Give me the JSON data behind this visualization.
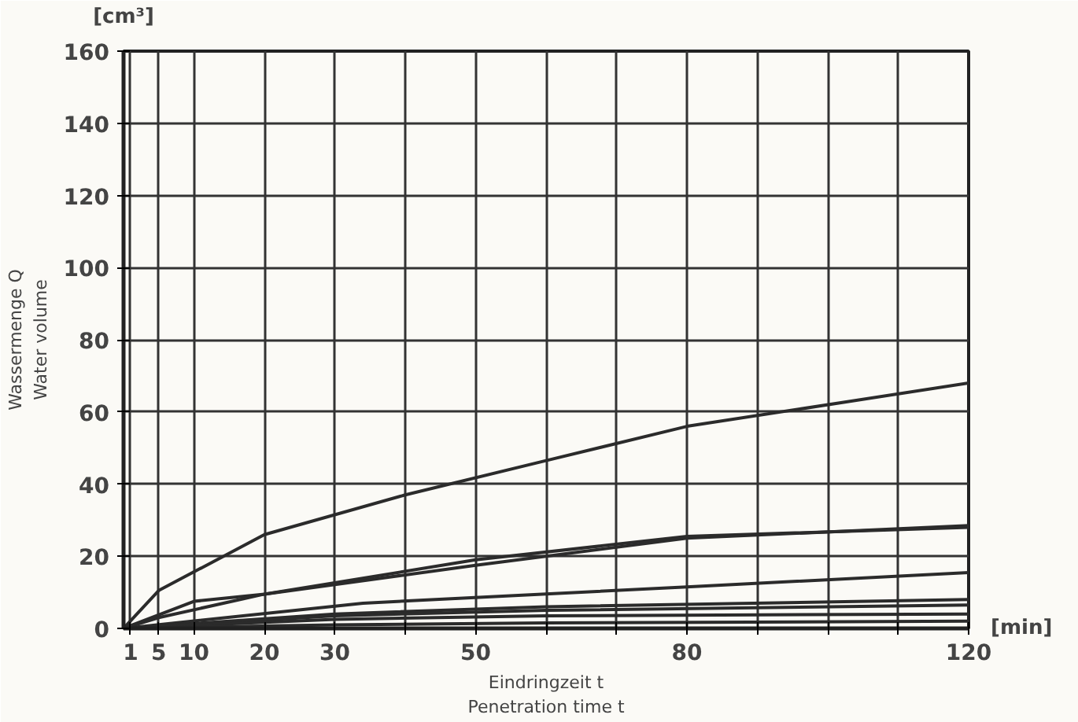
{
  "chart_data": {
    "type": "line",
    "xlabel": "Eindringzeit t\nPenetration time t",
    "ylabel": "Wassermenge Q\nWater volume",
    "annotations": [
      "[cm³]",
      "[min]"
    ],
    "xlim": [
      0,
      120
    ],
    "ylim": [
      0,
      160
    ],
    "xticks": [
      1,
      5,
      10,
      20,
      30,
      {
        "value": 40,
        "label": null
      },
      50,
      {
        "value": 60,
        "label": null
      },
      {
        "value": 70,
        "label": null
      },
      80,
      {
        "value": 90,
        "label": null
      },
      {
        "value": 100,
        "label": null
      },
      {
        "value": 110,
        "label": null
      },
      120
    ],
    "yticks": [
      0,
      20,
      40,
      60,
      80,
      100,
      120,
      140,
      160
    ],
    "grid": true,
    "marker": "none",
    "line_style": "solid",
    "series": [
      {
        "color": "#2b2b2b",
        "x": [
          0,
          5,
          20,
          40,
          60,
          80,
          120
        ],
        "values": [
          0,
          10.5,
          26,
          37,
          46.5,
          56,
          68
        ]
      },
      {
        "color": "#2b2b2b",
        "x": [
          0,
          10,
          20,
          50,
          80,
          120
        ],
        "values": [
          0,
          7.5,
          9.5,
          17.5,
          25,
          28.5
        ]
      },
      {
        "color": "#2b2b2b",
        "x": [
          0,
          5,
          20,
          50,
          80,
          120
        ],
        "values": [
          0,
          3,
          9.5,
          19,
          25.5,
          28
        ]
      },
      {
        "color": "#2b2b2b",
        "x": [
          0,
          34,
          80,
          120
        ],
        "values": [
          0,
          7,
          11.5,
          15.5
        ]
      },
      {
        "color": "#2b2b2b",
        "x": [
          0,
          30,
          60,
          120
        ],
        "values": [
          0,
          4,
          6,
          8
        ]
      },
      {
        "color": "#2b2b2b",
        "x": [
          0,
          30,
          60,
          120
        ],
        "values": [
          0,
          3.5,
          5,
          6.5
        ]
      },
      {
        "color": "#2b2b2b",
        "x": [
          0,
          30,
          60,
          120
        ],
        "values": [
          0,
          2.5,
          3.5,
          4
        ]
      },
      {
        "color": "#2b2b2b",
        "x": [
          0,
          30,
          60,
          120
        ],
        "values": [
          0,
          1,
          1.5,
          2
        ]
      }
    ]
  }
}
